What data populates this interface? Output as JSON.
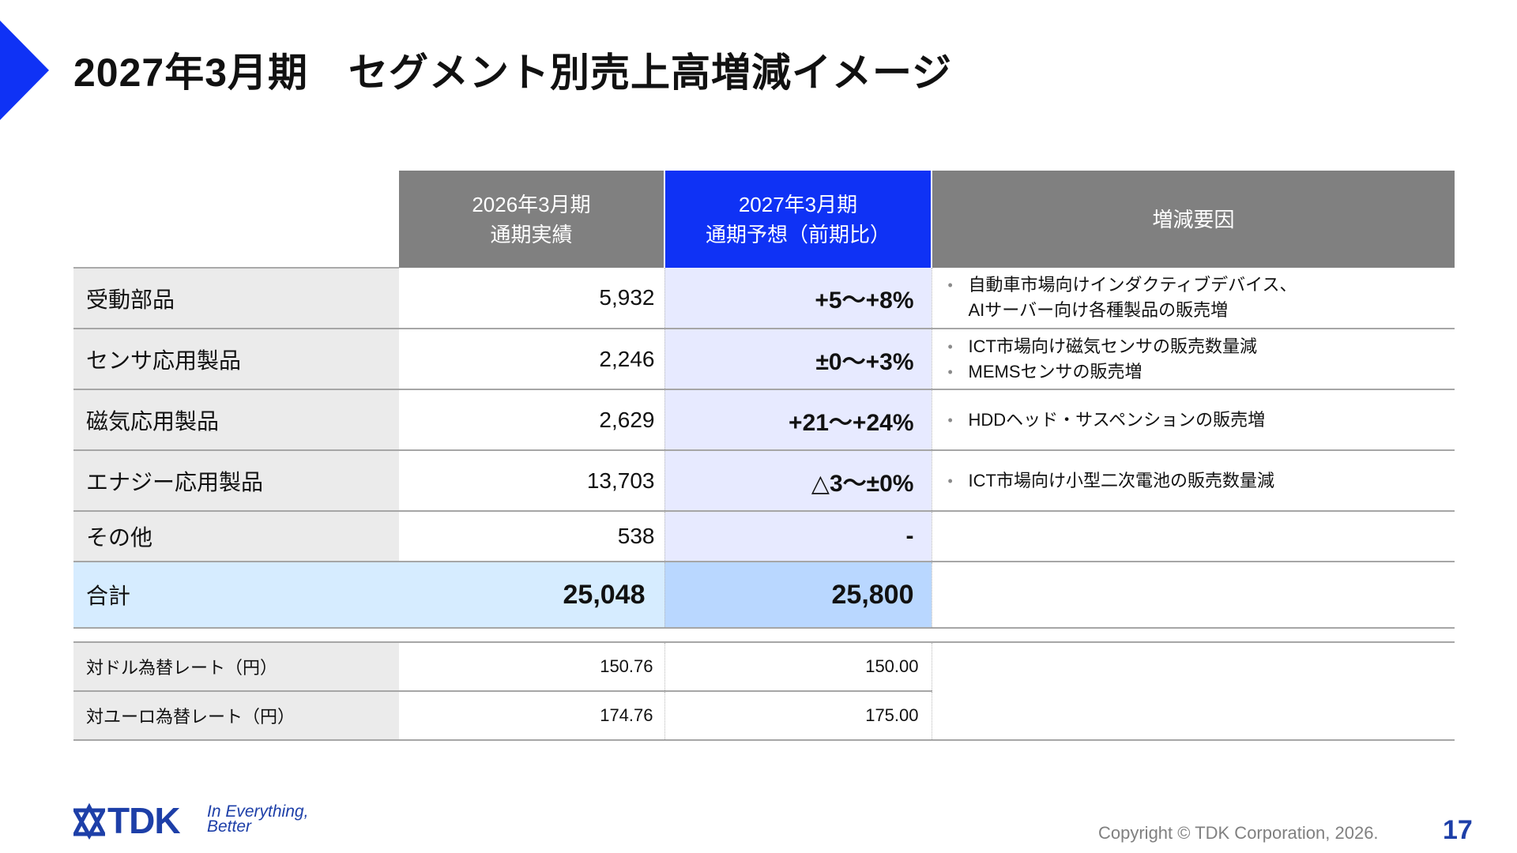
{
  "title": "2027年3月期　セグメント別売上高増減イメージ",
  "colors": {
    "accent": "#0f32f5",
    "header_gray": "#808080",
    "brand_navy": "#1d3fa8"
  },
  "header": {
    "col_actual": {
      "line1": "2026年3月期",
      "line2": "通期実績"
    },
    "col_forecast": {
      "line1": "2027年3月期",
      "line2": "通期予想（前期比）"
    },
    "col_reasons": "増減要因"
  },
  "rows": [
    {
      "label": "受動部品",
      "actual": "5,932",
      "forecast": "+5〜+8%",
      "reasons": [
        {
          "text": "自動車市場向けインダクティブデバイス、",
          "cont": "AIサーバー向け各種製品の販売増"
        }
      ]
    },
    {
      "label": "センサ応用製品",
      "actual": "2,246",
      "forecast": "±0〜+3%",
      "reasons": [
        {
          "text": "ICT市場向け磁気センサの販売数量減"
        },
        {
          "text": "MEMSセンサの販売増"
        }
      ]
    },
    {
      "label": "磁気応用製品",
      "actual": "2,629",
      "forecast": "+21〜+24%",
      "reasons": [
        {
          "text": "HDDヘッド・サスペンションの販売増"
        }
      ]
    },
    {
      "label": "エナジー応用製品",
      "actual": "13,703",
      "forecast": "△3〜±0%",
      "reasons": [
        {
          "text": "ICT市場向け小型二次電池の販売数量減"
        }
      ]
    },
    {
      "label": "その他",
      "actual": "538",
      "forecast": "-",
      "reasons": []
    }
  ],
  "total": {
    "label": "合計",
    "actual": "25,048",
    "forecast": "25,800"
  },
  "fx": [
    {
      "label": "対ドル為替レート（円）",
      "actual": "150.76",
      "forecast": "150.00"
    },
    {
      "label": "対ユーロ為替レート（円）",
      "actual": "174.76",
      "forecast": "175.00"
    }
  ],
  "footer": {
    "logo_text": "TDK",
    "tagline_line1": "In Everything,",
    "tagline_line2": "Better",
    "copyright": "Copyright  © TDK Corporation, 2026.",
    "page_number": "17"
  }
}
